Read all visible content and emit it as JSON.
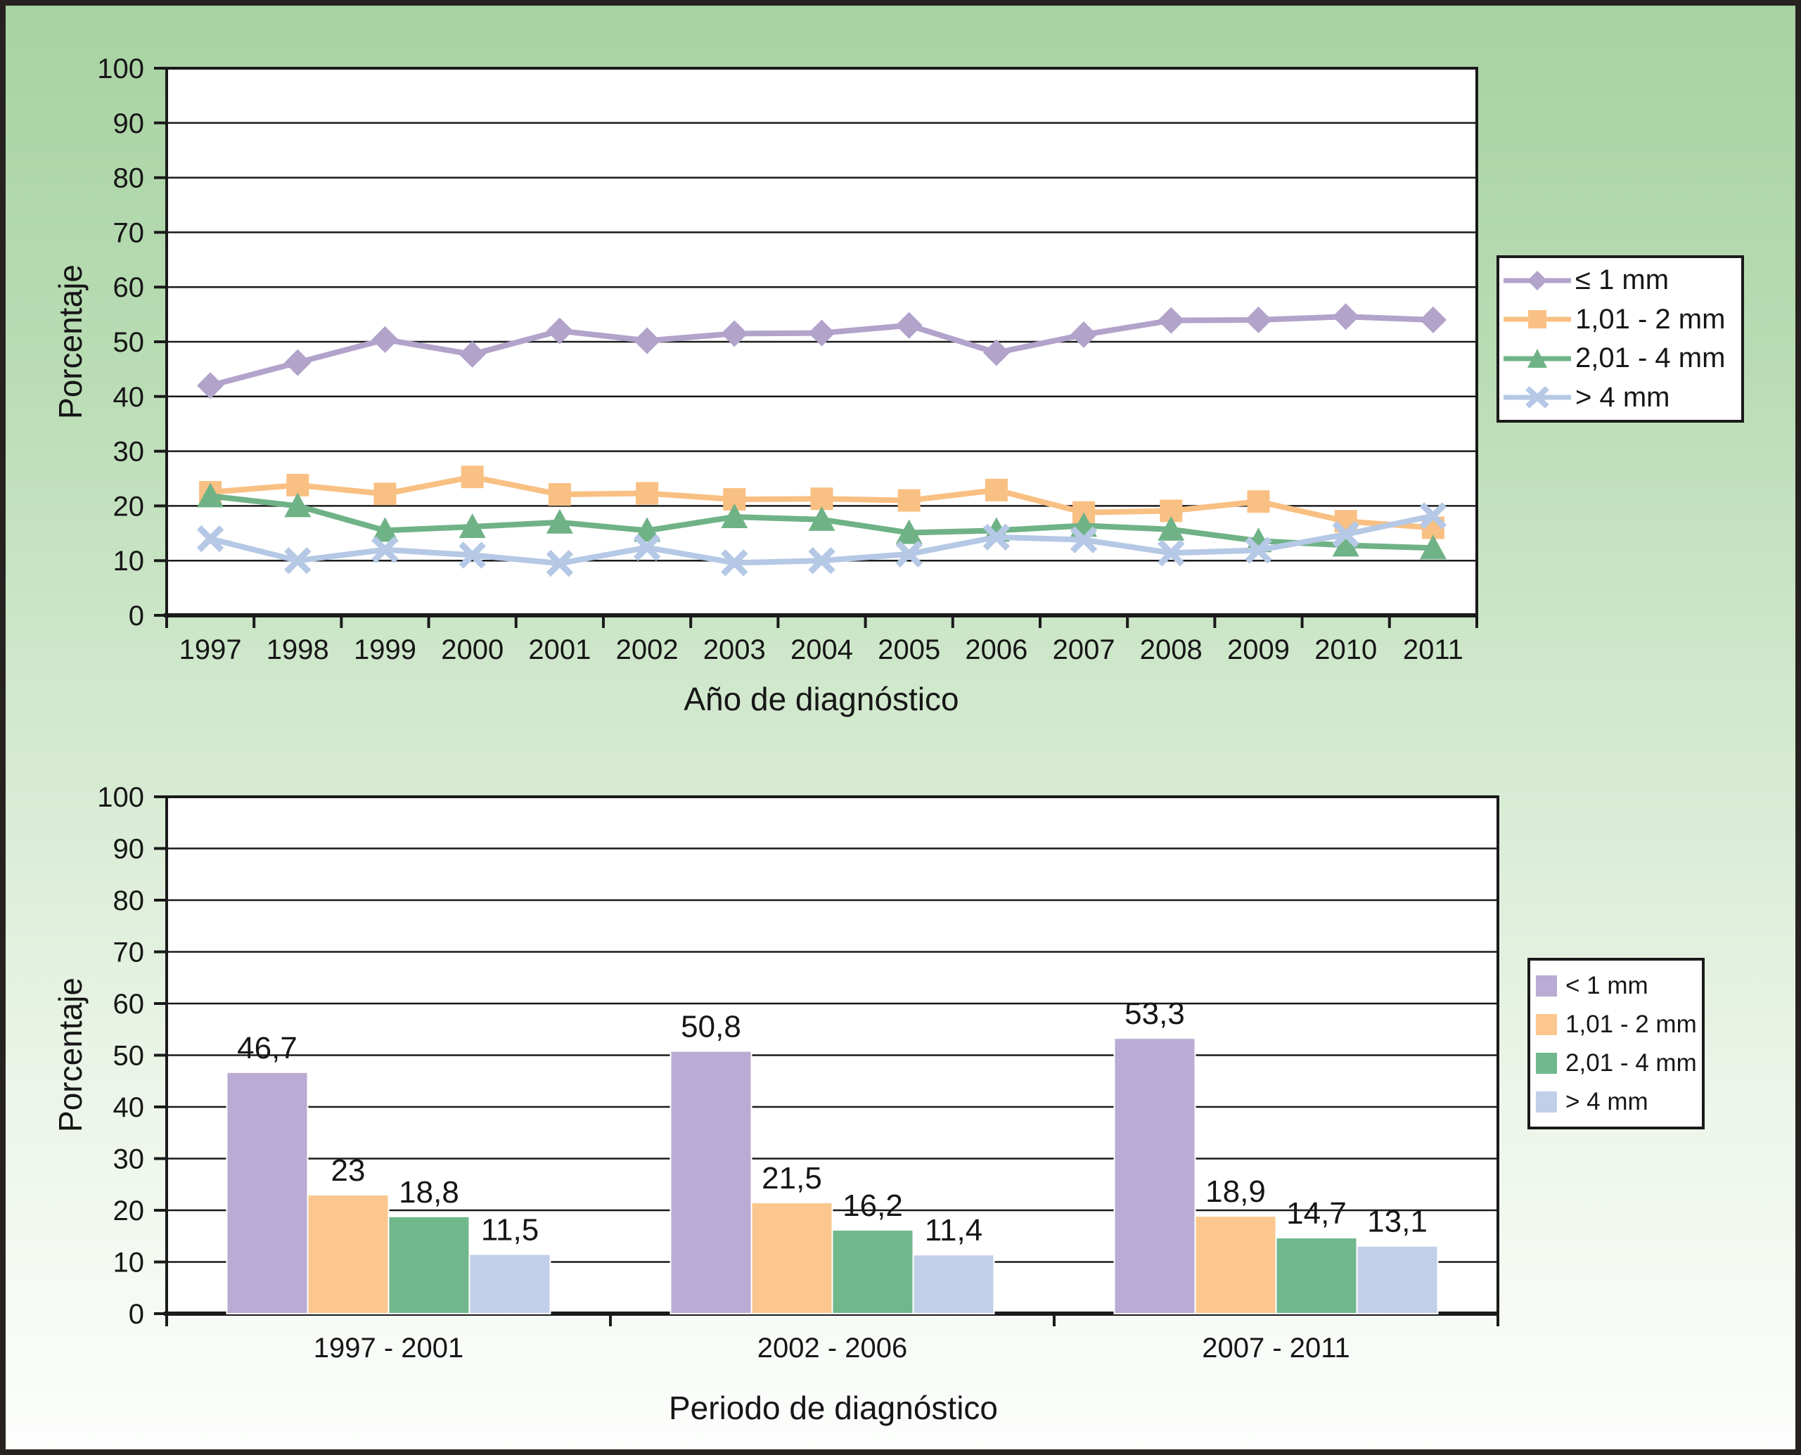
{
  "figure": {
    "border_color": "#272220",
    "background_top_color": "#a8d2a2",
    "background_bottom_color": "#fdfefd",
    "text_color": "#161616"
  },
  "chart_data": [
    {
      "type": "line",
      "title": "",
      "xlabel": "Año de diagnóstico",
      "ylabel": "Porcentaje",
      "ylim": [
        0,
        100
      ],
      "ytick_step": 10,
      "y_ticks": [
        "0",
        "10",
        "20",
        "30",
        "40",
        "50",
        "60",
        "70",
        "80",
        "90",
        "100"
      ],
      "grid": true,
      "legend_position": "right",
      "categories": [
        "1997",
        "1998",
        "1999",
        "2000",
        "2001",
        "2002",
        "2003",
        "2004",
        "2005",
        "2006",
        "2007",
        "2008",
        "2009",
        "2010",
        "2011"
      ],
      "series": [
        {
          "name": "≤ 1 mm",
          "marker": "diamond",
          "color": "#b2a3cb",
          "values": [
            42.0,
            46.2,
            50.4,
            47.7,
            52.0,
            50.2,
            51.5,
            51.6,
            53.0,
            48.0,
            51.3,
            53.9,
            54.0,
            54.6,
            54.0
          ]
        },
        {
          "name": "1,01 - 2 mm",
          "marker": "square",
          "color": "#f9c083",
          "values": [
            22.5,
            23.8,
            22.2,
            25.3,
            22.1,
            22.3,
            21.2,
            21.3,
            21.0,
            22.9,
            18.8,
            19.1,
            20.8,
            17.2,
            16.0
          ]
        },
        {
          "name": "2,01 - 4 mm",
          "marker": "triangle",
          "color": "#6fb286",
          "values": [
            21.8,
            20.0,
            15.5,
            16.2,
            17.0,
            15.5,
            18.0,
            17.5,
            15.1,
            15.5,
            16.4,
            15.7,
            13.6,
            12.8,
            12.3
          ]
        },
        {
          "name": "> 4 mm",
          "marker": "x",
          "color": "#b5c8e5",
          "values": [
            14.0,
            10.0,
            12.0,
            11.0,
            9.5,
            12.4,
            9.6,
            10.0,
            11.2,
            14.3,
            13.8,
            11.4,
            11.9,
            14.8,
            18.2
          ]
        }
      ]
    },
    {
      "type": "bar",
      "title": "",
      "xlabel": "Periodo de diagnóstico",
      "ylabel": "Porcentaje",
      "ylim": [
        0,
        100
      ],
      "ytick_step": 10,
      "y_ticks": [
        "0",
        "10",
        "20",
        "30",
        "40",
        "50",
        "60",
        "70",
        "80",
        "90",
        "100"
      ],
      "grid": true,
      "legend_position": "right",
      "categories": [
        "1997 - 2001",
        "2002 - 2006",
        "2007 - 2011"
      ],
      "series": [
        {
          "name": "< 1 mm",
          "color": "#b9abd3",
          "values": [
            46.7,
            50.8,
            53.3
          ],
          "labels": [
            "46,7",
            "50,8",
            "53,3"
          ]
        },
        {
          "name": "1,01 - 2 mm",
          "color": "#fbc78e",
          "values": [
            23.0,
            21.5,
            18.9
          ],
          "labels": [
            "23",
            "21,5",
            "18,9"
          ]
        },
        {
          "name": "2,01 - 4 mm",
          "color": "#70b88c",
          "values": [
            18.8,
            16.2,
            14.7
          ],
          "labels": [
            "18,8",
            "16,2",
            "14,7"
          ]
        },
        {
          "name": "> 4 mm",
          "color": "#c1cfe9",
          "values": [
            11.5,
            11.4,
            13.1
          ],
          "labels": [
            "11,5",
            "11,4",
            "13,1"
          ]
        }
      ]
    }
  ]
}
